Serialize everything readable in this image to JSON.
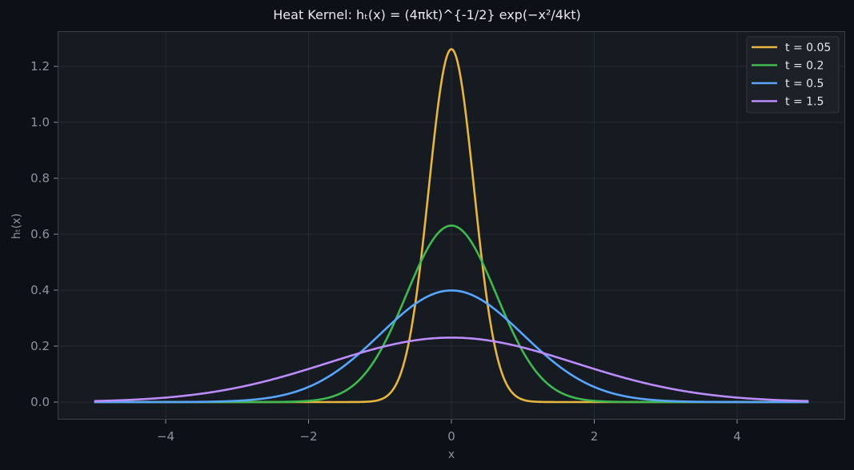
{
  "chart_data": {
    "type": "line",
    "title": "Heat Kernel: hₜ(x) = (4πkt)^{-1/2} exp(−x²/4kt)",
    "xlabel": "x",
    "ylabel": "hₜ(x)",
    "xlim": [
      -5.5,
      5.5
    ],
    "ylim": [
      -0.065,
      1.33
    ],
    "xticks": [
      -4,
      -2,
      0,
      2,
      4
    ],
    "xtick_labels": [
      "−4",
      "−2",
      "0",
      "2",
      "4"
    ],
    "yticks": [
      0.0,
      0.2,
      0.4,
      0.6,
      0.8,
      1.0,
      1.2
    ],
    "ytick_labels": [
      "0.0",
      "0.2",
      "0.4",
      "0.6",
      "0.8",
      "1.0",
      "1.2"
    ],
    "grid": true,
    "legend_position": "upper right",
    "k": 1,
    "x_range": [
      -5,
      5
    ],
    "series": [
      {
        "name": "t = 0.05",
        "t": 0.05,
        "color": "#e8b63e",
        "peak": 1.2616,
        "x": [
          -5,
          -1,
          -0.8,
          -0.6,
          -0.4,
          -0.2,
          0,
          0.2,
          0.4,
          0.6,
          0.8,
          1,
          5
        ],
        "values": [
          0,
          0.0088,
          0.0515,
          0.1868,
          0.5396,
          0.9563,
          1.2616,
          0.9563,
          0.5396,
          0.1868,
          0.0515,
          0.0088,
          0
        ]
      },
      {
        "name": "t = 0.2",
        "t": 0.2,
        "color": "#3fb950",
        "peak": 0.6308,
        "x": [
          -5,
          -2,
          -1.5,
          -1,
          -0.5,
          0,
          0.5,
          1,
          1.5,
          2,
          5
        ],
        "values": [
          0,
          0.0043,
          0.038,
          0.1809,
          0.4913,
          0.6308,
          0.4913,
          0.1809,
          0.038,
          0.0043,
          0
        ]
      },
      {
        "name": "t = 0.5",
        "t": 0.5,
        "color": "#58a6ff",
        "peak": 0.3989,
        "x": [
          -5,
          -3,
          -2,
          -1,
          0,
          1,
          2,
          3,
          5
        ],
        "values": [
          0.0,
          0.0044,
          0.054,
          0.242,
          0.3989,
          0.242,
          0.054,
          0.0044,
          0.0
        ]
      },
      {
        "name": "t = 1.5",
        "t": 1.5,
        "color": "#bc8cff",
        "peak": 0.2303,
        "x": [
          -5,
          -4,
          -3,
          -2,
          -1,
          0,
          1,
          2,
          3,
          4,
          5
        ],
        "values": [
          0.0036,
          0.016,
          0.0513,
          0.1184,
          0.1955,
          0.2303,
          0.1955,
          0.1184,
          0.0513,
          0.016,
          0.0036
        ]
      }
    ]
  },
  "colors": {
    "background": "#0d1117",
    "plot_bg": "#161b22",
    "grid": "#252b33",
    "spine": "#3a4049",
    "tick_text": "#8b949e",
    "title_text": "#e6e8eb",
    "legend_bg": "#1c2128",
    "legend_border": "#30363d",
    "legend_text": "#e6e8eb"
  }
}
